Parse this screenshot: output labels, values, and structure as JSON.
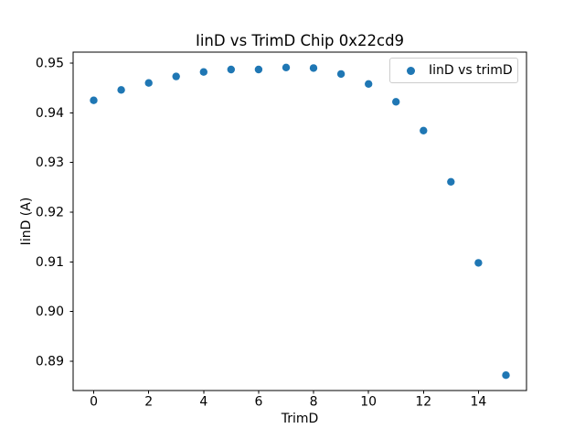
{
  "chart_data": {
    "type": "scatter",
    "title": "IinD vs TrimD Chip 0x22cd9",
    "xlabel": "TrimD",
    "ylabel": "IinD (A)",
    "legend": {
      "label": "IinD vs trimD",
      "position": "upper right"
    },
    "series": [
      {
        "name": "IinD vs trimD",
        "x": [
          0,
          1,
          2,
          3,
          4,
          5,
          6,
          7,
          8,
          9,
          10,
          11,
          12,
          13,
          14,
          15
        ],
        "y": [
          0.9425,
          0.9446,
          0.946,
          0.9473,
          0.9482,
          0.9487,
          0.9487,
          0.9491,
          0.949,
          0.9478,
          0.9458,
          0.9422,
          0.9364,
          0.9261,
          0.9098,
          0.8872
        ]
      }
    ],
    "xlim": [
      -0.75,
      15.75
    ],
    "ylim": [
      0.8841,
      0.9522
    ],
    "xticks": {
      "values": [
        0,
        2,
        4,
        6,
        8,
        10,
        12,
        14
      ],
      "labels": [
        "0",
        "2",
        "4",
        "6",
        "8",
        "10",
        "12",
        "14"
      ]
    },
    "yticks": {
      "values": [
        0.89,
        0.9,
        0.91,
        0.92,
        0.93,
        0.94,
        0.95
      ],
      "labels": [
        "0.89",
        "0.90",
        "0.91",
        "0.92",
        "0.93",
        "0.94",
        "0.95"
      ]
    },
    "grid": false,
    "colors": {
      "marker": "#1f77b4",
      "spine": "#000000",
      "legend_border": "#cccccc",
      "background": "#ffffff"
    }
  }
}
